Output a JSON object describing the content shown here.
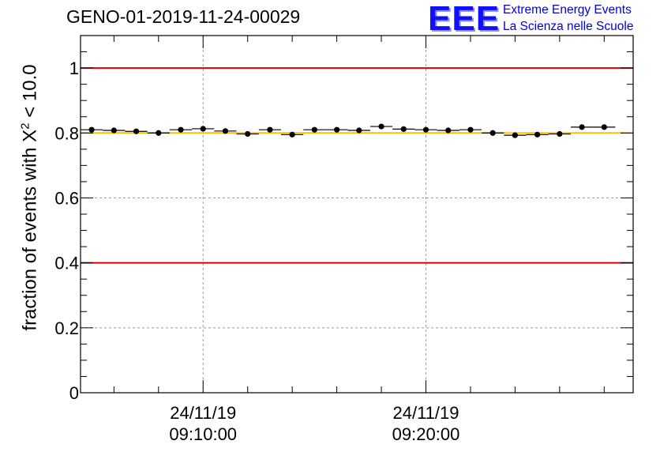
{
  "title": "GENO-01-2019-11-24-00029",
  "logo": {
    "mark": "EEE",
    "line1": "Extreme Energy Events",
    "line2": "La Scienza nelle Scuole"
  },
  "chart_data": {
    "type": "scatter",
    "ylabel_prefix": "fraction of events with X",
    "ylabel_sup": "2",
    "ylabel_suffix": " < 10.0",
    "ylim": [
      0,
      1.1
    ],
    "yticks": [
      0,
      0.2,
      0.4,
      0.6,
      0.8,
      1
    ],
    "ytick_labels": [
      "0",
      "0.2",
      "0.4",
      "0.6",
      "0.8",
      "1"
    ],
    "xlim_minutes": [
      4.5,
      29.3
    ],
    "xticks": [
      {
        "minutes": 10,
        "date": "24/11/19",
        "time": "09:10:00"
      },
      {
        "minutes": 20,
        "date": "24/11/19",
        "time": "09:20:00"
      }
    ],
    "x_start_time": "09:00",
    "reference_lines": [
      {
        "value": 1.0,
        "color": "#dd0000"
      },
      {
        "value": 0.4,
        "color": "#dd0000"
      },
      {
        "value": 0.8,
        "color": "#ffc000"
      }
    ],
    "grid": true,
    "series": [
      {
        "name": "fraction",
        "bin_width_minutes": 1.0,
        "points": [
          {
            "x": 5.0,
            "y": 0.81
          },
          {
            "x": 6.0,
            "y": 0.808
          },
          {
            "x": 7.0,
            "y": 0.805
          },
          {
            "x": 8.0,
            "y": 0.8
          },
          {
            "x": 9.0,
            "y": 0.81
          },
          {
            "x": 10.0,
            "y": 0.813
          },
          {
            "x": 11.0,
            "y": 0.806
          },
          {
            "x": 12.0,
            "y": 0.797
          },
          {
            "x": 13.0,
            "y": 0.81
          },
          {
            "x": 14.0,
            "y": 0.795
          },
          {
            "x": 15.0,
            "y": 0.81
          },
          {
            "x": 16.0,
            "y": 0.81
          },
          {
            "x": 17.0,
            "y": 0.808
          },
          {
            "x": 18.0,
            "y": 0.82
          },
          {
            "x": 19.0,
            "y": 0.812
          },
          {
            "x": 20.0,
            "y": 0.81
          },
          {
            "x": 21.0,
            "y": 0.808
          },
          {
            "x": 22.0,
            "y": 0.81
          },
          {
            "x": 23.0,
            "y": 0.8
          },
          {
            "x": 24.0,
            "y": 0.793
          },
          {
            "x": 25.0,
            "y": 0.795
          },
          {
            "x": 26.0,
            "y": 0.797
          },
          {
            "x": 27.0,
            "y": 0.818
          },
          {
            "x": 28.0,
            "y": 0.818
          }
        ]
      }
    ]
  }
}
